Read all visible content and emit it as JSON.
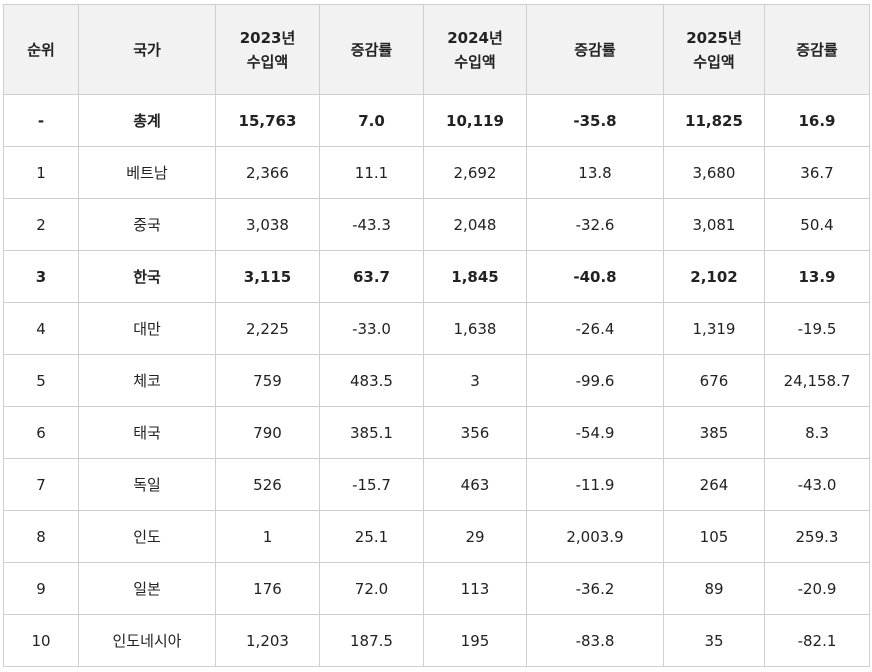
{
  "table": {
    "headers": [
      [
        "순위"
      ],
      [
        "국가"
      ],
      [
        "2023년",
        "수입액"
      ],
      [
        "증감률"
      ],
      [
        "2024년",
        "수입액"
      ],
      [
        "증감률"
      ],
      [
        "2025년",
        "수입액"
      ],
      [
        "증감률"
      ]
    ],
    "rows": [
      {
        "bold": true,
        "cells": [
          "-",
          "총계",
          "15,763",
          "7.0",
          "10,119",
          "-35.8",
          "11,825",
          "16.9"
        ]
      },
      {
        "bold": false,
        "cells": [
          "1",
          "베트남",
          "2,366",
          "11.1",
          "2,692",
          "13.8",
          "3,680",
          "36.7"
        ]
      },
      {
        "bold": false,
        "cells": [
          "2",
          "중국",
          "3,038",
          "-43.3",
          "2,048",
          "-32.6",
          "3,081",
          "50.4"
        ]
      },
      {
        "bold": true,
        "cells": [
          "3",
          "한국",
          "3,115",
          "63.7",
          "1,845",
          "-40.8",
          "2,102",
          "13.9"
        ]
      },
      {
        "bold": false,
        "cells": [
          "4",
          "대만",
          "2,225",
          "-33.0",
          "1,638",
          "-26.4",
          "1,319",
          "-19.5"
        ]
      },
      {
        "bold": false,
        "cells": [
          "5",
          "체코",
          "759",
          "483.5",
          "3",
          "-99.6",
          "676",
          "24,158.7"
        ]
      },
      {
        "bold": false,
        "cells": [
          "6",
          "태국",
          "790",
          "385.1",
          "356",
          "-54.9",
          "385",
          "8.3"
        ]
      },
      {
        "bold": false,
        "cells": [
          "7",
          "독일",
          "526",
          "-15.7",
          "463",
          "-11.9",
          "264",
          "-43.0"
        ]
      },
      {
        "bold": false,
        "cells": [
          "8",
          "인도",
          "1",
          "25.1",
          "29",
          "2,003.9",
          "105",
          "259.3"
        ]
      },
      {
        "bold": false,
        "cells": [
          "9",
          "일본",
          "176",
          "72.0",
          "113",
          "-36.2",
          "89",
          "-20.9"
        ]
      },
      {
        "bold": false,
        "cells": [
          "10",
          "인도네시아",
          "1,203",
          "187.5",
          "195",
          "-83.8",
          "35",
          "-82.1"
        ]
      }
    ]
  }
}
